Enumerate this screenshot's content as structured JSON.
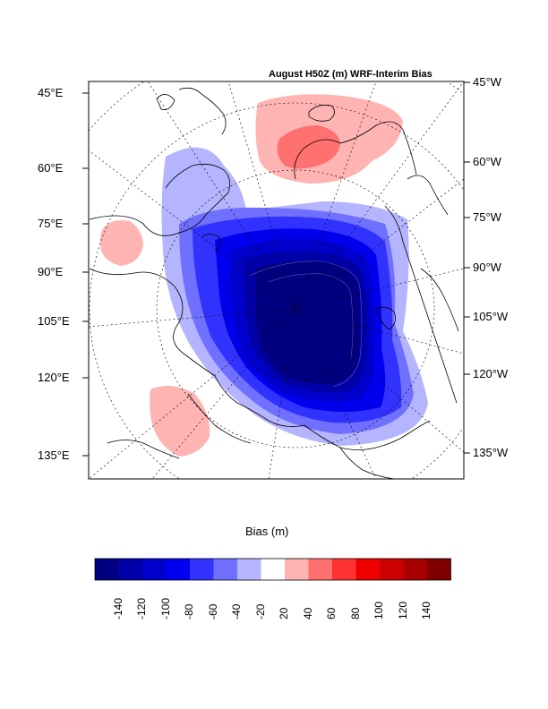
{
  "title": "August H50Z (m) WRF-Interim Bias",
  "left_labels": [
    "45°E",
    "60°E",
    "75°E",
    "90°E",
    "105°E",
    "120°E",
    "135°E"
  ],
  "right_labels": [
    "45°W",
    "60°W",
    "75°W",
    "90°W",
    "105°W",
    "120°W",
    "135°W"
  ],
  "colorbar": {
    "title": "Bias (m)",
    "ticks": [
      "-140",
      "-120",
      "-100",
      "-80",
      "-60",
      "-40",
      "-20",
      "20",
      "40",
      "60",
      "80",
      "100",
      "120",
      "140"
    ],
    "colors": [
      "#000080",
      "#0000a8",
      "#0000cc",
      "#0000ee",
      "#3232ff",
      "#7070ff",
      "#b4b4ff",
      "#ffffff",
      "#ffb4b4",
      "#ff7070",
      "#ff3232",
      "#ee0000",
      "#cc0000",
      "#a80000",
      "#800000"
    ]
  }
}
